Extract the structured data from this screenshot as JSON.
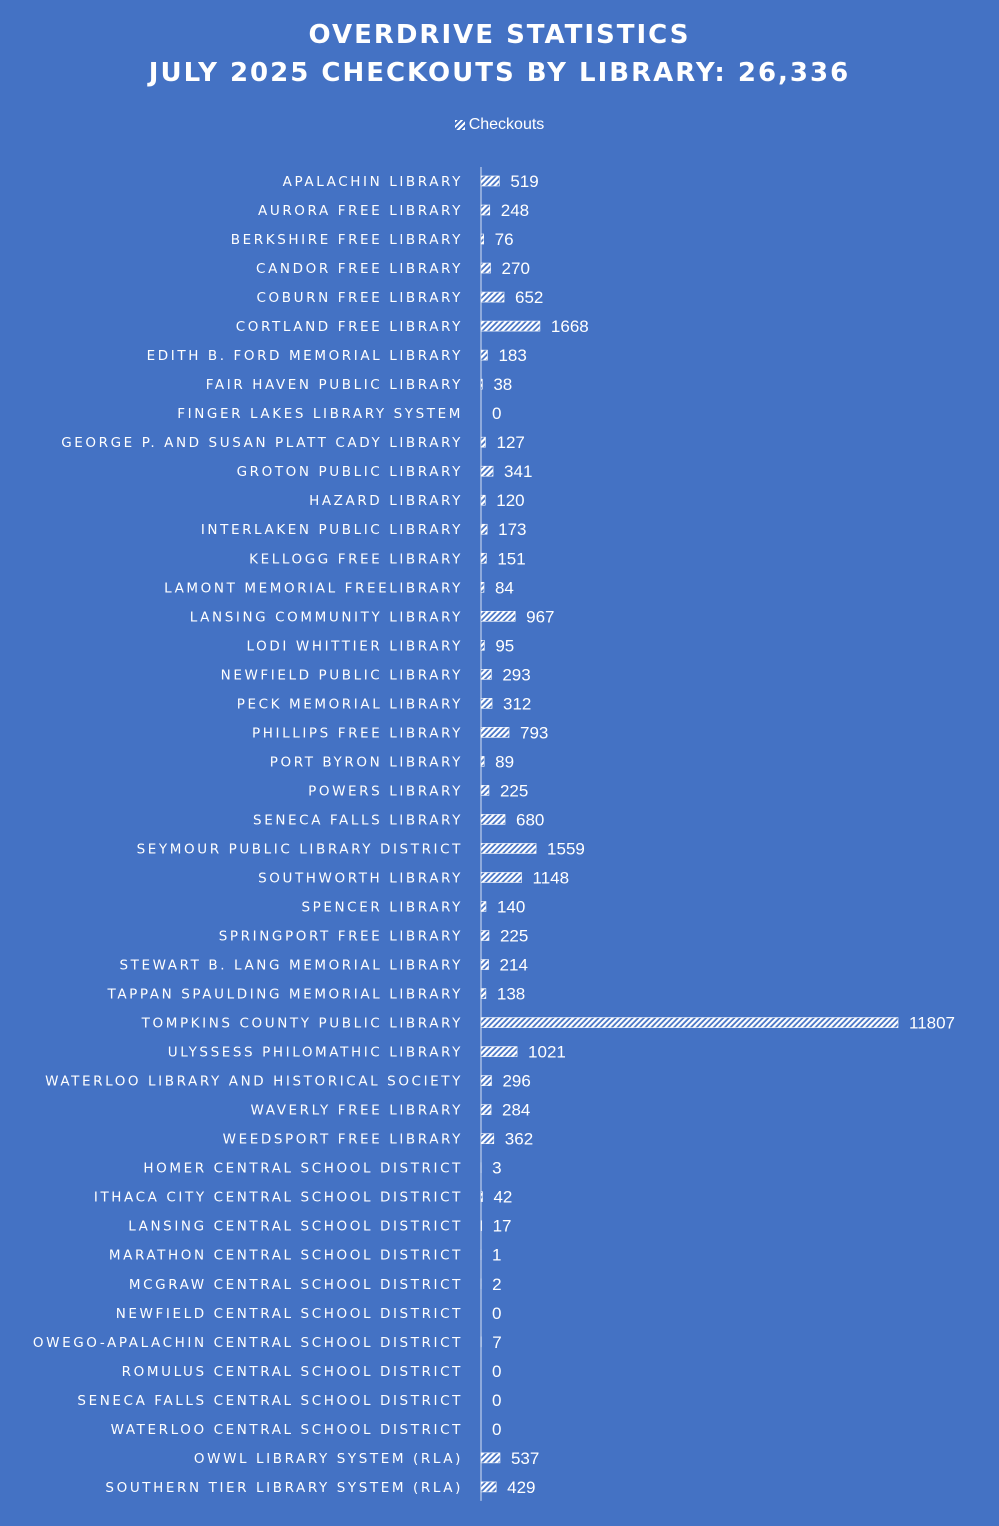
{
  "chart_data": {
    "type": "bar",
    "orientation": "horizontal",
    "title": "OVERDRIVE STATISTICS",
    "subtitle": "JULY 2025 CHECKOUTS BY LIBRARY: 26,336",
    "legend": "top",
    "grid": false,
    "xlim": [
      0,
      11807
    ],
    "series": [
      {
        "name": "Checkouts",
        "values": [
          519,
          248,
          76,
          270,
          652,
          1668,
          183,
          38,
          0,
          127,
          341,
          120,
          173,
          151,
          84,
          967,
          95,
          293,
          312,
          793,
          89,
          225,
          680,
          1559,
          1148,
          140,
          225,
          214,
          138,
          11807,
          1021,
          296,
          284,
          362,
          3,
          42,
          17,
          1,
          2,
          0,
          7,
          0,
          0,
          0,
          537,
          429
        ]
      }
    ],
    "categories": [
      "APALACHIN LIBRARY",
      "AURORA FREE LIBRARY",
      "BERKSHIRE FREE LIBRARY",
      "CANDOR FREE LIBRARY",
      "COBURN FREE LIBRARY",
      "CORTLAND FREE LIBRARY",
      "EDITH B. FORD MEMORIAL LIBRARY",
      "FAIR HAVEN PUBLIC LIBRARY",
      "FINGER LAKES LIBRARY SYSTEM",
      "GEORGE P. AND SUSAN PLATT CADY LIBRARY",
      "GROTON PUBLIC LIBRARY",
      "HAZARD LIBRARY",
      "INTERLAKEN PUBLIC LIBRARY",
      "KELLOGG FREE LIBRARY",
      "LAMONT MEMORIAL FREELIBRARY",
      "LANSING COMMUNITY LIBRARY",
      "LODI WHITTIER LIBRARY",
      "NEWFIELD PUBLIC LIBRARY",
      "PECK MEMORIAL LIBRARY",
      "PHILLIPS FREE LIBRARY",
      "PORT BYRON LIBRARY",
      "POWERS LIBRARY",
      "SENECA FALLS LIBRARY",
      "SEYMOUR PUBLIC LIBRARY DISTRICT",
      "SOUTHWORTH LIBRARY",
      "SPENCER LIBRARY",
      "SPRINGPORT FREE LIBRARY",
      "STEWART B. LANG MEMORIAL LIBRARY",
      "TAPPAN SPAULDING MEMORIAL LIBRARY",
      "TOMPKINS COUNTY PUBLIC LIBRARY",
      "ULYSSESS PHILOMATHIC LIBRARY",
      "WATERLOO LIBRARY AND HISTORICAL SOCIETY",
      "WAVERLY FREE LIBRARY",
      "WEEDSPORT FREE LIBRARY",
      "HOMER CENTRAL SCHOOL DISTRICT",
      "ITHACA CITY CENTRAL SCHOOL DISTRICT",
      "LANSING CENTRAL SCHOOL DISTRICT",
      "MARATHON CENTRAL SCHOOL DISTRICT",
      "MCGRAW CENTRAL SCHOOL DISTRICT",
      "NEWFIELD CENTRAL SCHOOL DISTRICT",
      "OWEGO-APALACHIN CENTRAL SCHOOL DISTRICT",
      "ROMULUS CENTRAL SCHOOL DISTRICT",
      "SENECA FALLS CENTRAL SCHOOL DISTRICT",
      "WATERLOO CENTRAL SCHOOL DISTRICT",
      "OWWL LIBRARY SYSTEM (RLA)",
      "SOUTHERN TIER LIBRARY SYSTEM (RLA)"
    ]
  },
  "colors": {
    "background": "#4472c4",
    "bar": "#ffffff",
    "text": "#ffffff"
  }
}
